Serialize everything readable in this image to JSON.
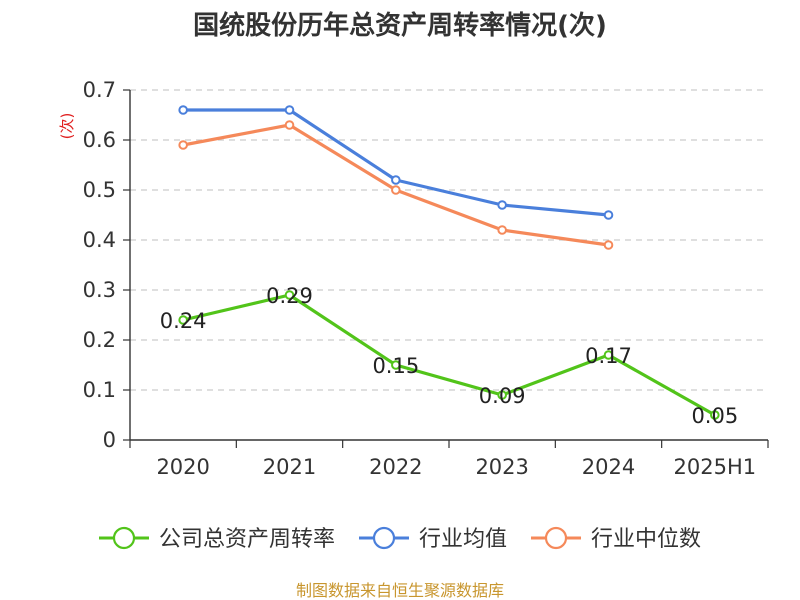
{
  "chart_data": {
    "type": "line",
    "title": "国统股份历年总资产周转率情况(次)",
    "ylabel": "(次)",
    "xlabel": "",
    "categories": [
      "2020",
      "2021",
      "2022",
      "2023",
      "2024",
      "2025H1"
    ],
    "ylim": [
      0,
      0.7
    ],
    "yticks": [
      "0",
      "0.1",
      "0.2",
      "0.3",
      "0.4",
      "0.5",
      "0.6",
      "0.7"
    ],
    "grid": true,
    "legend_position": "bottom",
    "series": [
      {
        "name": "公司总资产周转率",
        "color": "#52c41a",
        "values": [
          0.24,
          0.29,
          0.15,
          0.09,
          0.17,
          0.05
        ],
        "labels": [
          "0.24",
          "0.29",
          "0.15",
          "0.09",
          "0.17",
          "0.05"
        ]
      },
      {
        "name": "行业均值",
        "color": "#4a7fdb",
        "values": [
          0.66,
          0.66,
          0.52,
          0.47,
          0.45,
          null
        ]
      },
      {
        "name": "行业中位数",
        "color": "#f5895a",
        "values": [
          0.59,
          0.63,
          0.5,
          0.42,
          0.39,
          null
        ]
      }
    ]
  },
  "footer": {
    "source": "制图数据来自恒生聚源数据库",
    "source_color": "#c8962e"
  }
}
